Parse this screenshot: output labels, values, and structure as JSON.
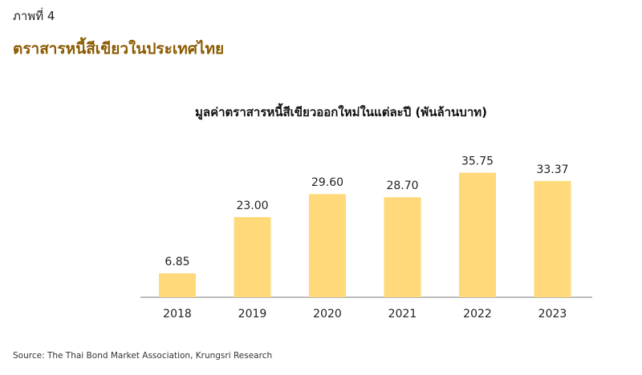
{
  "header": {
    "figure_label": "ภาพที่ 4",
    "figure_title": "ตราสารหนี้สีเขียวในประเทศไทย"
  },
  "source": "Source: The Thai Bond Market Association, Krungsri Research",
  "colors": {
    "bar": "#FFD97A",
    "title": "#8A5A00",
    "axis": "#777777"
  },
  "chart_data": {
    "type": "bar",
    "title": "มูลค่าตราสารหนี้สีเขียวออกใหม่ในแต่ละปี (พันล้านบาท)",
    "categories": [
      "2018",
      "2019",
      "2020",
      "2021",
      "2022",
      "2023"
    ],
    "values": [
      6.85,
      23.0,
      29.6,
      28.7,
      35.75,
      33.37
    ],
    "value_labels": [
      "6.85",
      "23.00",
      "29.60",
      "28.70",
      "35.75",
      "33.37"
    ],
    "xlabel": "",
    "ylabel": "",
    "ylim": [
      0,
      40
    ],
    "grid": false,
    "legend": "none"
  }
}
